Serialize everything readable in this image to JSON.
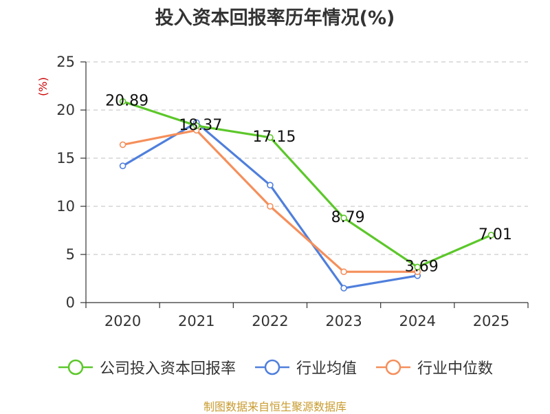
{
  "chart_data": {
    "type": "line",
    "title": "投入资本回报率历年情况(%)",
    "ylabel": "(%)",
    "xlabel": "",
    "categories": [
      "2020",
      "2021",
      "2022",
      "2023",
      "2024",
      "2025"
    ],
    "ylim": [
      0,
      25
    ],
    "yticks": [
      0,
      5,
      10,
      15,
      20,
      25
    ],
    "grid": true,
    "legend_position": "bottom",
    "series": [
      {
        "name": "公司投入资本回报率",
        "color": "#5cc72a",
        "values": [
          20.89,
          18.37,
          17.15,
          8.79,
          3.69,
          7.01
        ],
        "labels": [
          "20.89",
          "18.37",
          "17.15",
          "8.79",
          "3.69",
          "7.01"
        ]
      },
      {
        "name": "行业均值",
        "color": "#4f7fdc",
        "values": [
          14.2,
          18.7,
          12.2,
          1.5,
          2.8,
          null
        ]
      },
      {
        "name": "行业中位数",
        "color": "#f58f5b",
        "values": [
          16.4,
          17.9,
          10.0,
          3.2,
          3.2,
          null
        ]
      }
    ]
  },
  "source": "制图数据来自恒生聚源数据库"
}
